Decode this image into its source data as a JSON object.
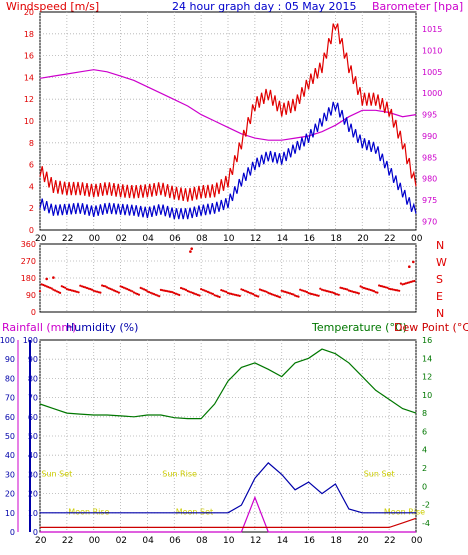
{
  "colors": {
    "wind": "#e00000",
    "gust": "#e00000",
    "wind_avg": "#0000cc",
    "barometer": "#cc00cc",
    "temperature": "#007700",
    "humidity": "#0000aa",
    "dewpoint": "#cc0000",
    "rainfall": "#cc00cc",
    "sun_moon": "#cccc00",
    "grid": "#b0b0b0",
    "frame": "#000000"
  },
  "chart_data": [
    {
      "type": "line",
      "title": "24 hour graph day : 05 May 2015",
      "left_axis_label": "Windspeed [m/s]",
      "right_axis_label": "Barometer [hpa]",
      "x_tick_labels": [
        "20",
        "22",
        "00",
        "02",
        "04",
        "06",
        "08",
        "10",
        "12",
        "14",
        "16",
        "18",
        "20",
        "22",
        "00"
      ],
      "y_left_ticks": [
        "0",
        "2",
        "4",
        "6",
        "8",
        "10",
        "12",
        "14",
        "16",
        "18",
        "20"
      ],
      "y_right_ticks": [
        "970",
        "975",
        "980",
        "985",
        "990",
        "995",
        "1000",
        "1005",
        "1010",
        "1015"
      ],
      "ylim_left": [
        0,
        20
      ],
      "ylim_right": [
        968,
        1019
      ],
      "x_hours": [
        0,
        1,
        2,
        3,
        4,
        5,
        6,
        7,
        8,
        9,
        10,
        11,
        12,
        13,
        14,
        15,
        16,
        17,
        18,
        19,
        20,
        21,
        22,
        23,
        24,
        25,
        26,
        27,
        28
      ],
      "series": [
        {
          "name": "Windspeed (gust)",
          "axis": "left",
          "values": [
            5.5,
            4.0,
            3.8,
            3.8,
            3.6,
            3.8,
            3.6,
            3.5,
            3.6,
            3.8,
            3.4,
            3.2,
            3.5,
            3.6,
            4.5,
            8.0,
            11.5,
            12.5,
            11.0,
            11.5,
            13.5,
            15.0,
            19.0,
            15.0,
            12.0,
            12.0,
            11.0,
            8.0,
            4.0
          ]
        },
        {
          "name": "Windspeed (average)",
          "axis": "left",
          "values": [
            2.5,
            1.8,
            1.9,
            2.0,
            1.7,
            2.0,
            1.9,
            1.8,
            1.6,
            1.9,
            1.5,
            1.5,
            1.8,
            2.0,
            2.5,
            4.5,
            6.0,
            6.8,
            6.5,
            7.5,
            8.5,
            10.0,
            11.5,
            9.5,
            8.0,
            7.5,
            5.5,
            3.5,
            1.5
          ]
        },
        {
          "name": "Barometer",
          "axis": "right",
          "values": [
            1003.5,
            1004.0,
            1004.5,
            1005.0,
            1005.5,
            1005.0,
            1004.0,
            1003.0,
            1001.5,
            1000.0,
            998.5,
            997.0,
            995.0,
            993.5,
            992.0,
            990.5,
            989.5,
            989.0,
            989.0,
            989.5,
            990.0,
            991.0,
            992.5,
            994.5,
            996.0,
            996.0,
            995.5,
            994.5,
            995.0
          ]
        }
      ]
    },
    {
      "type": "scatter",
      "title": "",
      "left_axis_label": "",
      "y_left_ticks": [
        "360",
        "270",
        "180",
        "90",
        "0"
      ],
      "y_right_labels": [
        "N",
        "W",
        "S",
        "E",
        "N"
      ],
      "ylim": [
        0,
        360
      ],
      "x_hours": [
        0,
        1,
        2,
        3,
        4,
        5,
        6,
        7,
        8,
        9,
        10,
        11,
        12,
        13,
        14,
        15,
        16,
        17,
        18,
        19,
        20,
        21,
        22,
        23,
        24,
        25,
        26,
        27,
        28
      ],
      "series": [
        {
          "name": "Wind direction",
          "values": [
            130,
            125,
            115,
            120,
            120,
            125,
            118,
            112,
            105,
            100,
            110,
            108,
            105,
            100,
            98,
            105,
            100,
            100,
            98,
            100,
            100,
            105,
            110,
            115,
            118,
            120,
            125,
            135,
            180
          ]
        }
      ],
      "outliers": [
        {
          "x": 0.5,
          "y": 175
        },
        {
          "x": 1.0,
          "y": 182
        },
        {
          "x": 11.2,
          "y": 320
        },
        {
          "x": 11.3,
          "y": 335
        },
        {
          "x": 27.5,
          "y": 240
        },
        {
          "x": 27.8,
          "y": 265
        }
      ]
    },
    {
      "type": "line",
      "title": "",
      "labels": {
        "rainfall": "Rainfall (mm)",
        "humidity": "Humidity (%)",
        "temperature": "Temperature (°C)",
        "dewpoint": "Dew Point (°C)"
      },
      "x_tick_labels": [
        "20",
        "22",
        "00",
        "02",
        "04",
        "06",
        "08",
        "10",
        "12",
        "14",
        "16",
        "18",
        "20",
        "22",
        "00"
      ],
      "y_rain_ticks": [
        "0",
        "10",
        "20",
        "30",
        "40",
        "50",
        "60",
        "70",
        "80",
        "90",
        "100"
      ],
      "y_humidity_ticks": [
        "0",
        "10",
        "20",
        "30",
        "40",
        "50",
        "60",
        "70",
        "80",
        "90",
        "100"
      ],
      "y_temp_ticks": [
        "16",
        "14",
        "12",
        "10",
        "8",
        "6",
        "4",
        "2",
        "0",
        "-2",
        "-4"
      ],
      "ylim_percent": [
        0,
        100
      ],
      "ylim_temp": [
        -5,
        16
      ],
      "x_hours": [
        0,
        1,
        2,
        3,
        4,
        5,
        6,
        7,
        8,
        9,
        10,
        11,
        12,
        13,
        14,
        15,
        16,
        17,
        18,
        19,
        20,
        21,
        22,
        23,
        24,
        25,
        26,
        27,
        28
      ],
      "series": [
        {
          "name": "Temperature",
          "unit": "°C",
          "values": [
            9.0,
            8.5,
            8.0,
            7.9,
            7.8,
            7.8,
            7.7,
            7.6,
            7.8,
            7.8,
            7.5,
            7.4,
            7.4,
            9.0,
            11.5,
            13.0,
            13.5,
            12.8,
            12.0,
            13.5,
            14.0,
            15.0,
            14.5,
            13.5,
            12.0,
            10.5,
            9.5,
            8.5,
            8.0
          ]
        },
        {
          "name": "Dew Point",
          "unit": "°C",
          "values": [
            -4.5,
            -4.5,
            -4.5,
            -4.5,
            -4.5,
            -4.5,
            -4.5,
            -4.5,
            -4.5,
            -4.5,
            -4.5,
            -4.5,
            -4.5,
            -4.5,
            -4.5,
            -4.5,
            -4.5,
            -4.5,
            -4.5,
            -4.5,
            -4.5,
            -4.5,
            -4.5,
            -4.5,
            -4.5,
            -4.5,
            -4.5,
            -4.0,
            -3.5
          ]
        },
        {
          "name": "Humidity",
          "unit": "%",
          "values": [
            10,
            10,
            10,
            10,
            10,
            10,
            10,
            10,
            10,
            10,
            10,
            10,
            10,
            10,
            10,
            14,
            28,
            36,
            30,
            22,
            26,
            20,
            25,
            12,
            10,
            10,
            10,
            10,
            10
          ]
        },
        {
          "name": "Rainfall",
          "unit": "mm",
          "values": [
            0,
            0,
            0,
            0,
            0,
            0,
            0,
            0,
            0,
            0,
            0,
            0,
            0,
            0,
            0,
            0,
            18,
            0,
            0,
            0,
            0,
            0,
            0,
            0,
            0,
            0,
            0,
            0,
            0
          ]
        }
      ],
      "annotations": [
        {
          "text": "Sun Set",
          "x_hour": 1.0,
          "level": 29
        },
        {
          "text": "Sun Rise",
          "x_hour": 10.0,
          "level": 29
        },
        {
          "text": "Sun Set",
          "x_hour": 25.0,
          "level": 29
        },
        {
          "text": "Moon Rise",
          "x_hour": 3.0,
          "level": 9
        },
        {
          "text": "Moon Set",
          "x_hour": 11.0,
          "level": 9
        },
        {
          "text": "Moon Rise",
          "x_hour": 26.5,
          "level": 9
        }
      ]
    }
  ]
}
